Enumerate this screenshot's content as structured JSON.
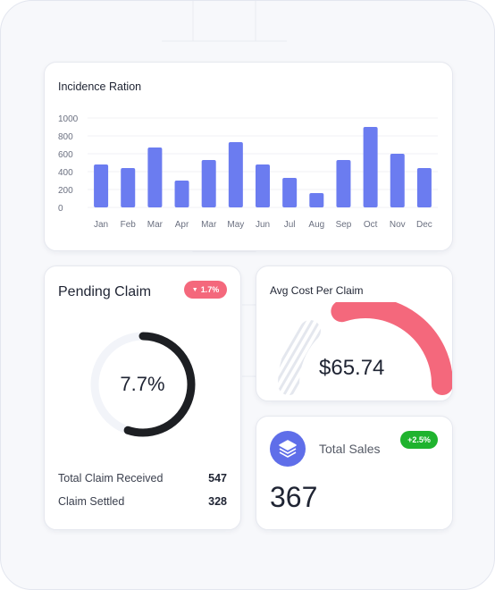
{
  "incidence": {
    "title": "Incidence Ration",
    "chart_data": {
      "type": "bar",
      "categories": [
        "Jan",
        "Feb",
        "Mar",
        "Apr",
        "Mar",
        "May",
        "Jun",
        "Jul",
        "Aug",
        "Sep",
        "Oct",
        "Nov",
        "Dec"
      ],
      "values": [
        480,
        440,
        670,
        300,
        530,
        730,
        480,
        330,
        160,
        530,
        900,
        600,
        440
      ],
      "ylim": [
        0,
        1000
      ],
      "yticks": [
        "1000",
        "800",
        "600",
        "400",
        "200",
        "0"
      ],
      "bar_color": "#6b7cf0",
      "grid": true
    }
  },
  "pending": {
    "title": "Pending Claim",
    "badge_text": "1.7%",
    "badge_color": "#f4687c",
    "percent_text": "7.7%",
    "progress": 0.55,
    "rows": [
      {
        "label": "Total Claim Received",
        "value": "547"
      },
      {
        "label": "Claim Settled",
        "value": "328"
      }
    ]
  },
  "avg_cost": {
    "title": "Avg Cost Per Claim",
    "value": "$65.74",
    "gauge_fraction": 0.6,
    "gauge_color": "#f4687c"
  },
  "total_sales": {
    "label": "Total Sales",
    "badge_text": "+2.5%",
    "badge_color": "#1fb32e",
    "value": "367",
    "icon": "layers-icon",
    "icon_color": "#5f6ee9"
  }
}
